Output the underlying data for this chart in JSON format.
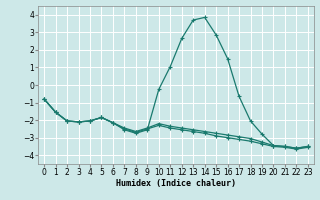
{
  "xlabel": "Humidex (Indice chaleur)",
  "xlim": [
    -0.5,
    23.5
  ],
  "ylim": [
    -4.5,
    4.5
  ],
  "yticks": [
    -4,
    -3,
    -2,
    -1,
    0,
    1,
    2,
    3,
    4
  ],
  "xticks": [
    0,
    1,
    2,
    3,
    4,
    5,
    6,
    7,
    8,
    9,
    10,
    11,
    12,
    13,
    14,
    15,
    16,
    17,
    18,
    19,
    20,
    21,
    22,
    23
  ],
  "background_color": "#cde8e8",
  "grid_color": "#b8d8d8",
  "line_color": "#1a7a6e",
  "series1_x": [
    0,
    1,
    2,
    3,
    4,
    5,
    6,
    7,
    8,
    9,
    10,
    11,
    12,
    13,
    14,
    15,
    16,
    17,
    18,
    19,
    20,
    21,
    22,
    23
  ],
  "series1_y": [
    -0.8,
    -1.55,
    -2.05,
    -2.1,
    -2.05,
    -1.85,
    -2.15,
    -2.55,
    -2.75,
    -2.55,
    -0.25,
    1.05,
    2.65,
    3.7,
    3.85,
    2.85,
    1.5,
    -0.65,
    -2.05,
    -2.8,
    -3.45,
    -3.5,
    -3.6,
    -3.5
  ],
  "series2_x": [
    0,
    1,
    2,
    3,
    4,
    5,
    6,
    7,
    8,
    9,
    10,
    11,
    12,
    13,
    14,
    15,
    16,
    17,
    18,
    19,
    20,
    21,
    22,
    23
  ],
  "series2_y": [
    -0.8,
    -1.55,
    -2.05,
    -2.1,
    -2.05,
    -1.85,
    -2.15,
    -2.45,
    -2.65,
    -2.45,
    -2.2,
    -2.35,
    -2.45,
    -2.55,
    -2.65,
    -2.75,
    -2.85,
    -2.95,
    -3.05,
    -3.25,
    -3.45,
    -3.5,
    -3.6,
    -3.5
  ],
  "series3_x": [
    0,
    1,
    2,
    3,
    4,
    5,
    6,
    7,
    8,
    9,
    10,
    11,
    12,
    13,
    14,
    15,
    16,
    17,
    18,
    19,
    20,
    21,
    22,
    23
  ],
  "series3_y": [
    -0.8,
    -1.55,
    -2.05,
    -2.1,
    -2.05,
    -1.85,
    -2.15,
    -2.5,
    -2.7,
    -2.5,
    -2.3,
    -2.45,
    -2.55,
    -2.65,
    -2.75,
    -2.9,
    -3.0,
    -3.1,
    -3.2,
    -3.35,
    -3.5,
    -3.55,
    -3.65,
    -3.55
  ]
}
